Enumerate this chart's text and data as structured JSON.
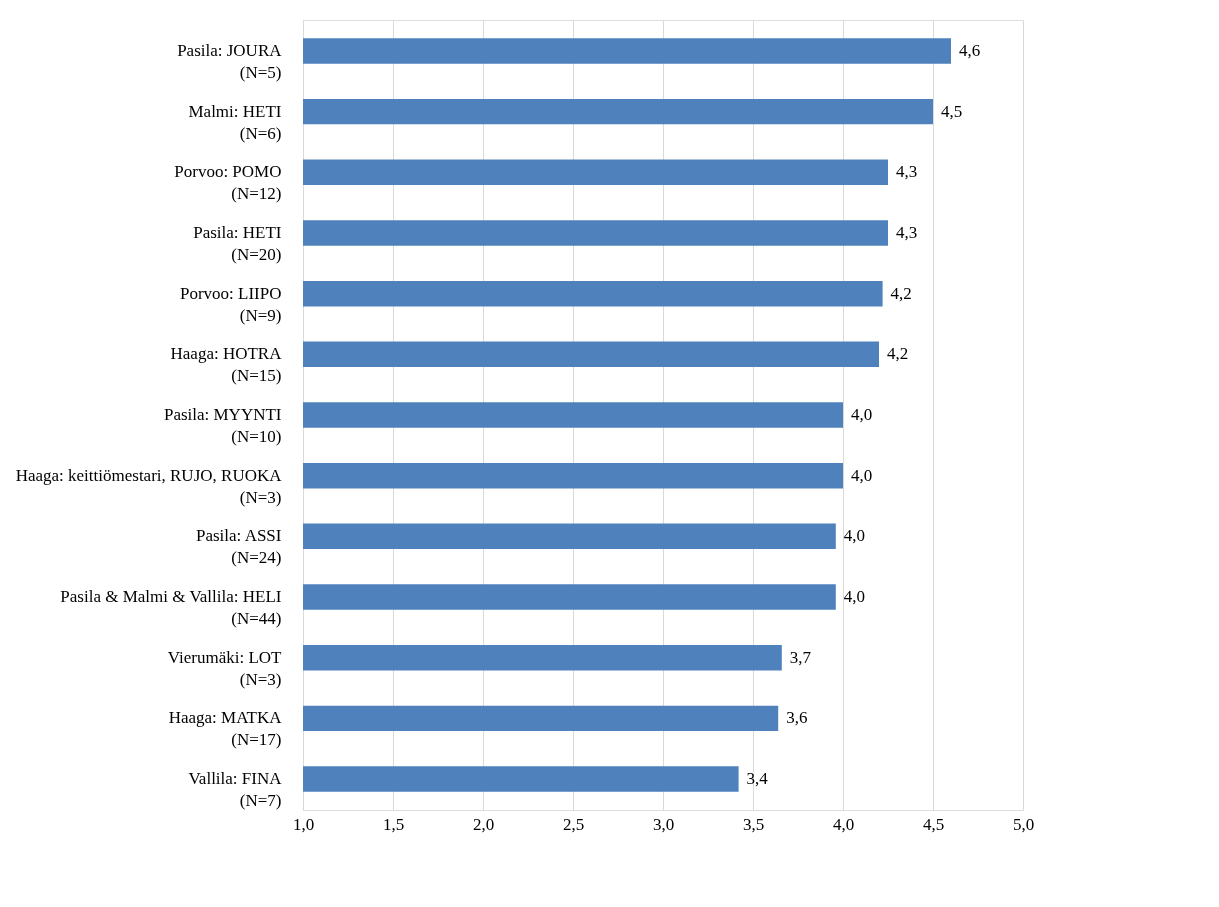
{
  "chart_data": {
    "type": "bar",
    "orientation": "horizontal",
    "categories": [
      "Pasila: JOURA\n(N=5)",
      "Malmi: HETI\n(N=6)",
      "Porvoo: POMO\n(N=12)",
      "Pasila: HETI\n(N=20)",
      "Porvoo: LIIPO\n(N=9)",
      "Haaga: HOTRA\n(N=15)",
      "Pasila: MYYNTI\n(N=10)",
      "Haaga: keittiömestari, RUJO, RUOKA\n(N=3)",
      "Pasila: ASSI\n(N=24)",
      "Pasila & Malmi & Vallila: HELI\n(N=44)",
      "Vierumäki: LOT\n(N=3)",
      "Haaga: MATKA\n(N=17)",
      "Vallila: FINA\n(N=7)"
    ],
    "values": [
      4.6,
      4.5,
      4.25,
      4.25,
      4.22,
      4.2,
      4.0,
      4.0,
      3.96,
      3.96,
      3.66,
      3.64,
      3.42
    ],
    "value_labels": [
      "4,6",
      "4,5",
      "4,3",
      "4,3",
      "4,2",
      "4,2",
      "4,0",
      "4,0",
      "4,0",
      "4,0",
      "3,7",
      "3,6",
      "3,4"
    ],
    "color": "#4f81bd",
    "xlim": [
      1,
      5
    ],
    "xticks": [
      {
        "value": 1,
        "label": "1,0"
      },
      {
        "value": 1.5,
        "label": "1,5"
      },
      {
        "value": 2,
        "label": "2,0"
      },
      {
        "value": 2.5,
        "label": "2,5"
      },
      {
        "value": 3,
        "label": "3,0"
      },
      {
        "value": 3.5,
        "label": "3,5"
      },
      {
        "value": 4,
        "label": "4,0"
      },
      {
        "value": 4.5,
        "label": "4,5"
      },
      {
        "value": 5,
        "label": "5,0"
      }
    ],
    "grid": "x"
  }
}
